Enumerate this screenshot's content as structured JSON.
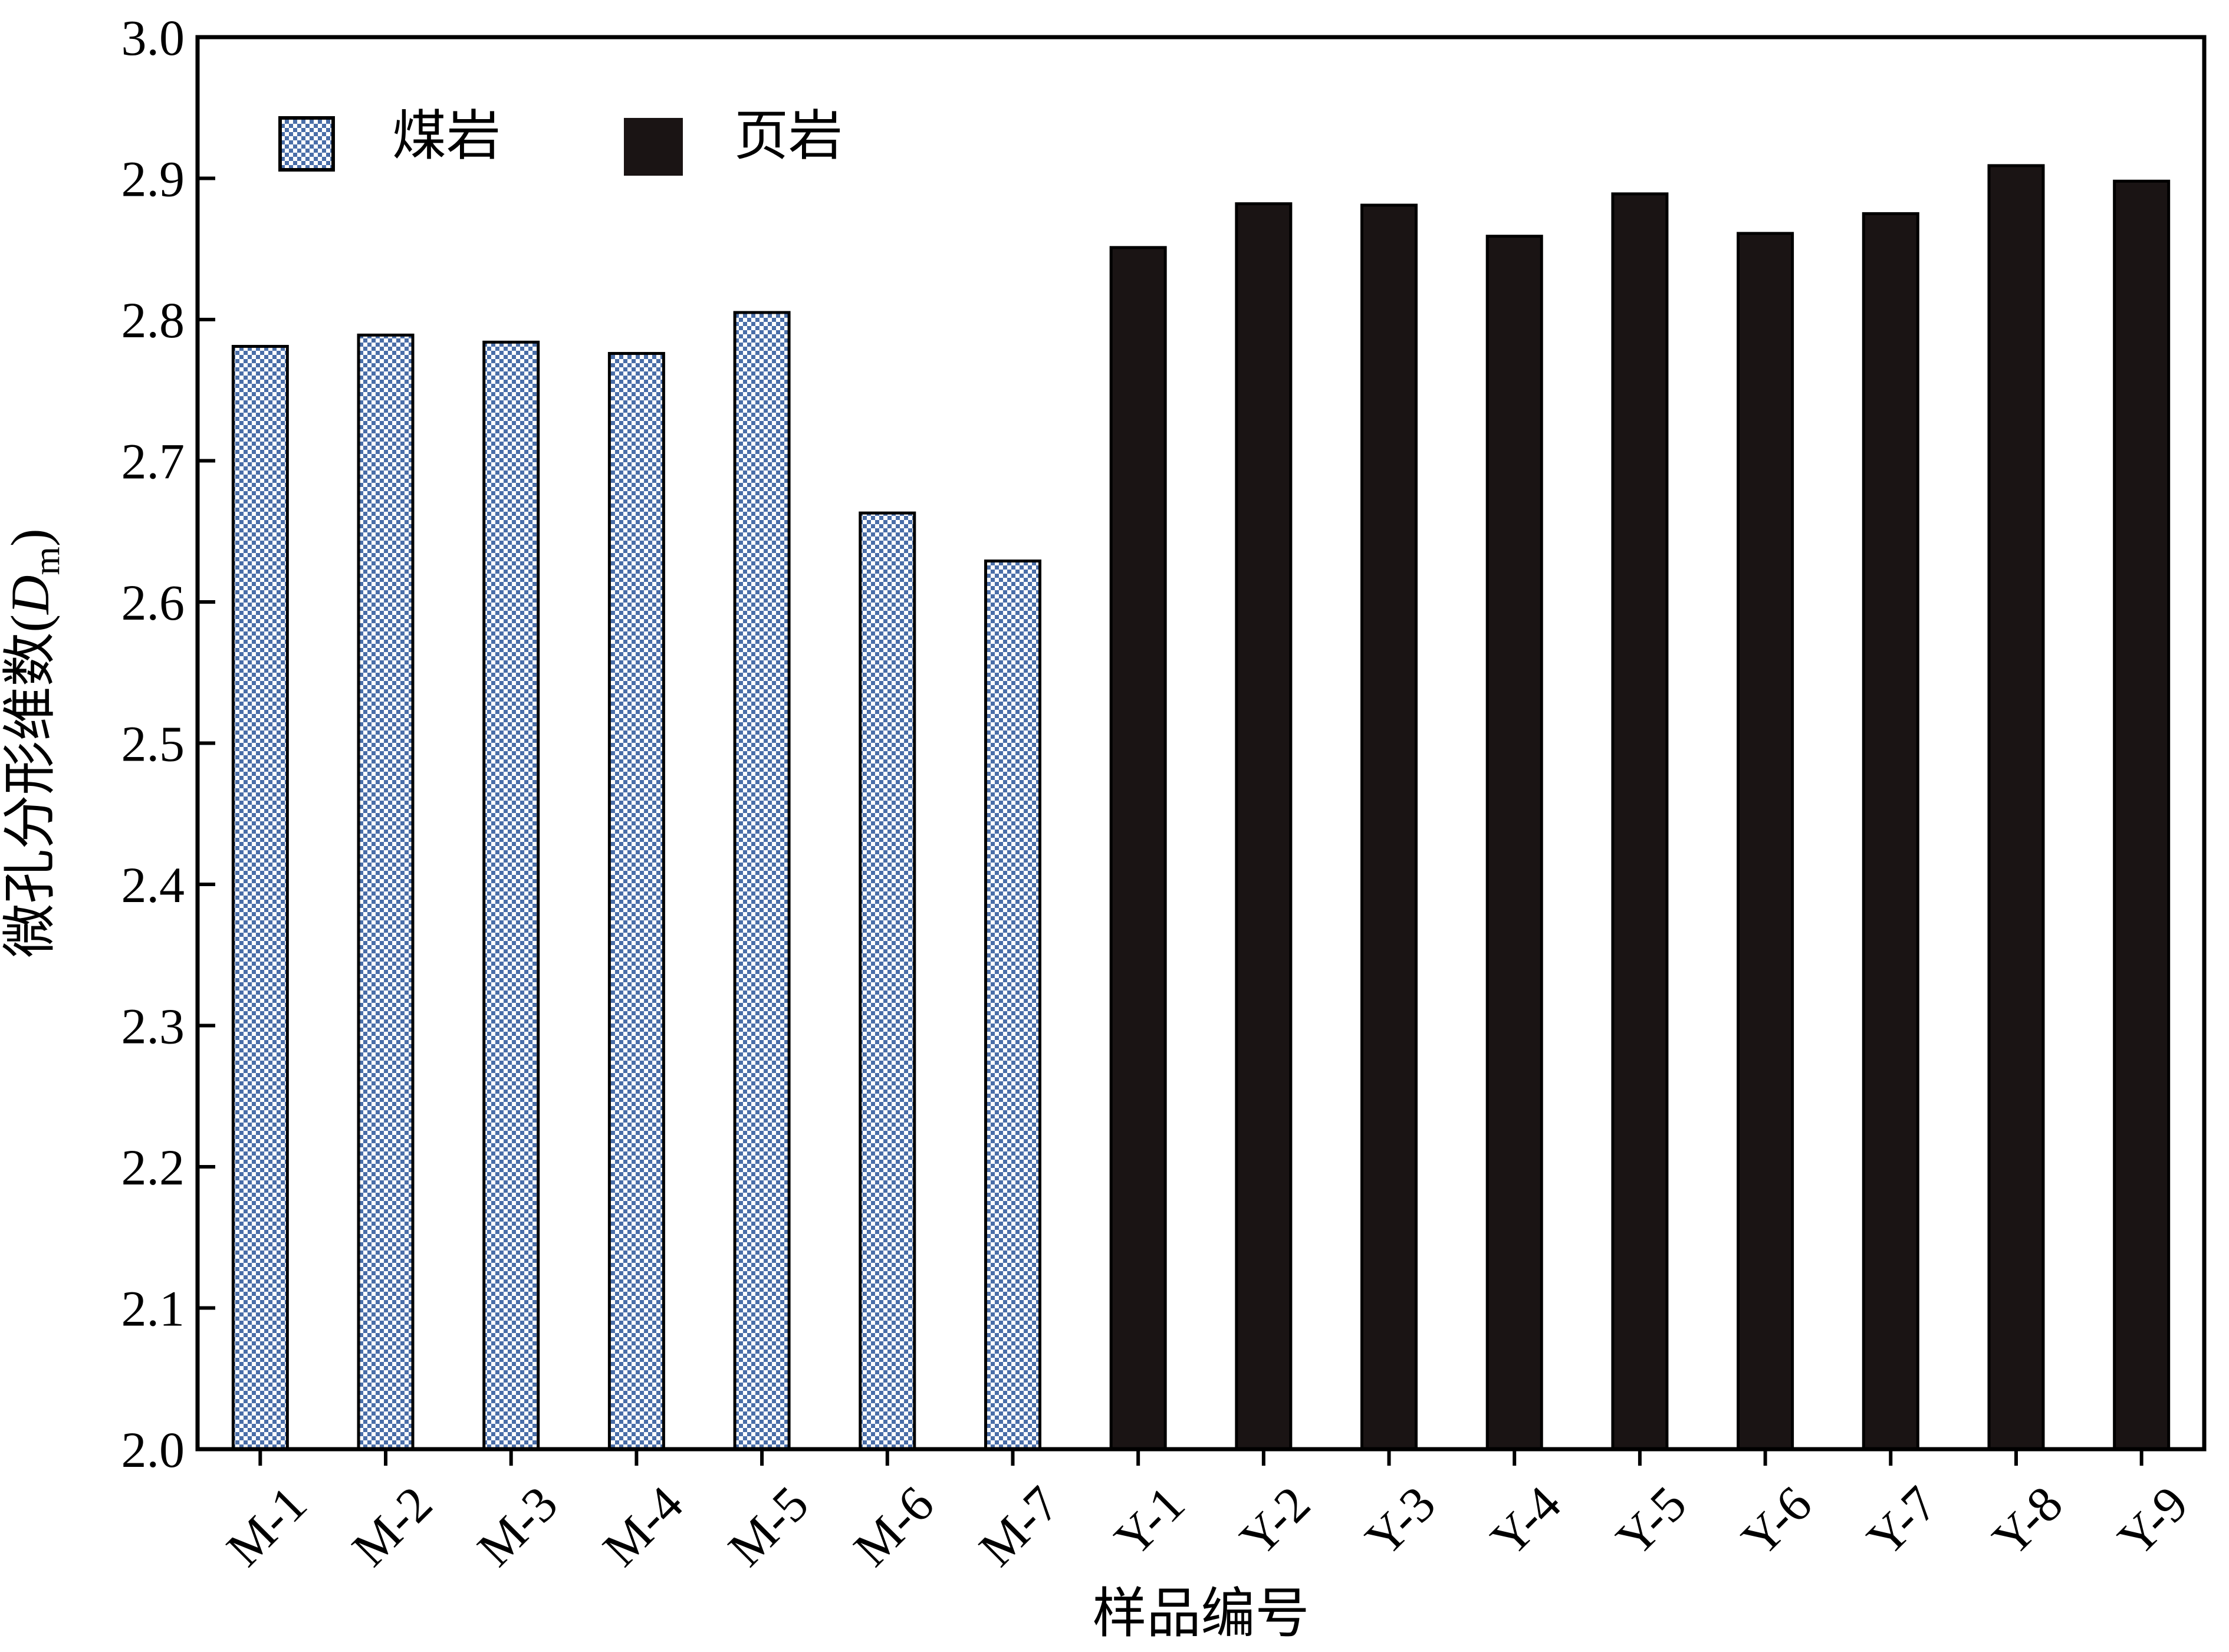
{
  "chart_data": {
    "type": "bar",
    "categories": [
      "M-1",
      "M-2",
      "M-3",
      "M-4",
      "M-5",
      "M-6",
      "M-7",
      "Y-1",
      "Y-2",
      "Y-3",
      "Y-4",
      "Y-5",
      "Y-6",
      "Y-7",
      "Y-8",
      "Y-9"
    ],
    "series": [
      {
        "name": "煤岩",
        "values": [
          2.781,
          2.789,
          2.784,
          2.776,
          2.805,
          2.663,
          2.629,
          null,
          null,
          null,
          null,
          null,
          null,
          null,
          null,
          null
        ],
        "pattern": "blue-white-zigzag",
        "color": "#4a6ea8"
      },
      {
        "name": "页岩",
        "values": [
          null,
          null,
          null,
          null,
          null,
          null,
          null,
          2.851,
          2.882,
          2.881,
          2.859,
          2.889,
          2.861,
          2.875,
          2.909,
          2.898
        ],
        "color": "#1a1414"
      }
    ],
    "xlabel": "样品编号",
    "ylabel": {
      "prefix": "微孔分形维数(",
      "italic": "D",
      "subscript": "m",
      "suffix": ")"
    },
    "ylim": [
      2.0,
      3.0
    ],
    "yticks": [
      "2.0",
      "2.1",
      "2.2",
      "2.3",
      "2.4",
      "2.5",
      "2.6",
      "2.7",
      "2.8",
      "2.9",
      "3.0"
    ],
    "grid": false,
    "legend_position": "top-left"
  }
}
